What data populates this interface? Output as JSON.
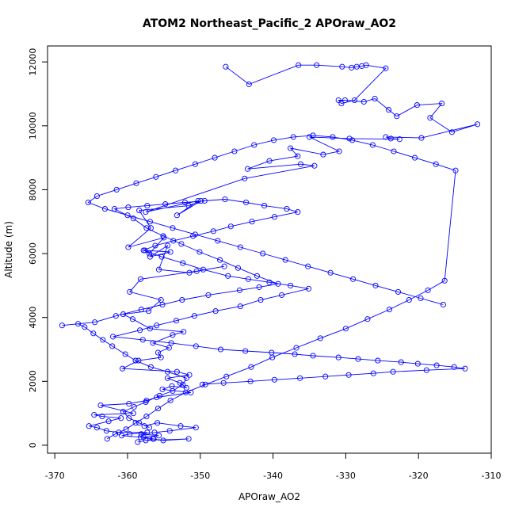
{
  "chart_data": {
    "type": "scatter",
    "title": "ATOM2 Northeast_Pacific_2 APOraw_AO2",
    "xlabel": "APOraw_AO2",
    "ylabel": "Altitude (m)",
    "xlim": [
      -371,
      -310
    ],
    "ylim": [
      -250,
      12500
    ],
    "xticks": [
      -370,
      -360,
      -350,
      -340,
      -330,
      -320,
      -310
    ],
    "yticks": [
      0,
      2000,
      4000,
      6000,
      8000,
      10000,
      12000
    ],
    "xtick_labels": [
      "-370",
      "-360",
      "-350",
      "-340",
      "-330",
      "-320",
      "-310"
    ],
    "ytick_labels": [
      "0",
      "2000",
      "4000",
      "6000",
      "8000",
      "10000",
      "12000"
    ],
    "grid": false,
    "marker": "open-circle",
    "connected": true,
    "series_color": "#0000ff",
    "series": [
      {
        "x": [
          -346.5,
          -343.3,
          -336.5,
          -334.0,
          -330.5,
          -329.2,
          -328.5,
          -327.8,
          -327.2,
          -324.5,
          -328.8,
          -330.6,
          -331.0,
          -330.1,
          -327.5,
          -326.0,
          -324.1,
          -323.0,
          -320.2,
          -316.8,
          -318.4,
          -315.4,
          -311.9,
          -319.6,
          -324.5,
          -323.8,
          -322.6,
          -329.5,
          -335.0,
          -330.9,
          -333.1,
          -337.6,
          -336.6,
          -340.5,
          -343.5,
          -336.2,
          -334.3,
          -343.9,
          -357.5,
          -350.3,
          -353.2,
          -349.9,
          -351.6,
          -358.4,
          -356.8,
          -359.9,
          -355.0,
          -357.0,
          -357.6,
          -354.1,
          -356.9,
          -354.5,
          -355.7,
          -351.5,
          -346.7,
          -350.5,
          -358.2,
          -359.7,
          -355.4,
          -357.1,
          -360.6,
          -359.3,
          -356.9,
          -352.3,
          -353.8,
          -356.5,
          -354.3,
          -355.8,
          -355.4,
          -358.5,
          -360.7,
          -353.2,
          -351.5,
          -354.5,
          -352.8,
          -351.9,
          -353.9,
          -355.2,
          -351.3,
          -356.0,
          -357.4,
          -359.8,
          -363.7,
          -359.2,
          -364.6,
          -363.5,
          -360.9,
          -362.6,
          -365.3,
          -364.2,
          -362.9,
          -361.2,
          -357.3,
          -359.7,
          -360.8,
          -358.2,
          -356.5,
          -355.1,
          -351.6,
          -357.5,
          -358.6,
          -356.4,
          -357.8,
          -355.7,
          -358.1,
          -356.3,
          -354.2,
          -350.6,
          -352.7,
          -355.9,
          -357.7
        ],
        "y": [
          11850,
          11300,
          11900,
          11900,
          11850,
          11820,
          11850,
          11870,
          11900,
          11800,
          10800,
          10700,
          10800,
          10800,
          10750,
          10850,
          10500,
          10300,
          10650,
          10700,
          10250,
          9800,
          10050,
          9620,
          9650,
          9600,
          9580,
          9600,
          9650,
          9200,
          9100,
          9300,
          9050,
          8900,
          8650,
          8800,
          8750,
          8350,
          7300,
          7650,
          7200,
          7650,
          7500,
          7350,
          6800,
          6200,
          6500,
          6000,
          6100,
          6050,
          5900,
          6250,
          5500,
          5400,
          5600,
          5450,
          5200,
          4800,
          4550,
          4200,
          4100,
          3950,
          3650,
          3550,
          3450,
          3200,
          3050,
          2900,
          2750,
          2650,
          2400,
          2300,
          2200,
          2100,
          1950,
          1800,
          1850,
          1750,
          1650,
          1500,
          1400,
          1300,
          1250,
          1000,
          950,
          900,
          850,
          750,
          600,
          550,
          450,
          400,
          400,
          350,
          300,
          250,
          200,
          150,
          200,
          150,
          100,
          200,
          250,
          300,
          350,
          400,
          450,
          550,
          600,
          700,
          600
        ]
      },
      {
        "x": [
          -357.0,
          -358.4,
          -359.8,
          -360.6,
          -359.1,
          -357.5,
          -355.6,
          -353.8,
          -352.4,
          -351.9,
          -354.5,
          -356.8,
          -358.9,
          -360.3,
          -362.1,
          -363.4,
          -364.7,
          -365.9,
          -366.8,
          -369.0,
          -364.5,
          -361.6,
          -358.1,
          -355.2,
          -352.5,
          -348.9,
          -344.6,
          -341.9,
          -339.3,
          -342.2,
          -344.8,
          -347.3,
          -350.1,
          -352.6,
          -355.1,
          -357.4,
          -359.2,
          -361.8,
          -359.9,
          -357.3,
          -354.8,
          -352.1,
          -349.4,
          -346.6,
          -343.7,
          -341.2,
          -338.1,
          -336.6,
          -339.8,
          -342.9,
          -345.8,
          -348.2,
          -351.0,
          -353.7,
          -356.2,
          -357.8,
          -355.3,
          -352.4,
          -349.6,
          -346.2,
          -343.4,
          -340.5,
          -337.6,
          -335.1,
          -338.8,
          -341.7,
          -344.5,
          -347.9,
          -350.8,
          -353.3,
          -356.0,
          -358.3,
          -362.0,
          -357.9,
          -354.0,
          -350.6,
          -347.2,
          -343.8,
          -340.2,
          -337.0,
          -334.5,
          -331.0,
          -328.3,
          -325.6,
          -322.4,
          -320.1,
          -317.5,
          -315.1,
          -313.6,
          -318.9,
          -323.5,
          -326.2,
          -329.6,
          -332.8,
          -336.3,
          -339.8,
          -343.1,
          -346.8,
          -349.7
        ],
        "y": [
          550,
          700,
          850,
          1050,
          1200,
          1350,
          1550,
          1700,
          1900,
          2100,
          2300,
          2450,
          2650,
          2850,
          3100,
          3300,
          3500,
          3700,
          3800,
          3750,
          3850,
          4050,
          4250,
          4400,
          4550,
          4700,
          4850,
          4950,
          5050,
          5300,
          5550,
          5800,
          6050,
          6300,
          6550,
          6800,
          7100,
          7400,
          7450,
          7500,
          7550,
          7600,
          7650,
          7700,
          7600,
          7500,
          7400,
          7300,
          7150,
          7000,
          6850,
          6700,
          6550,
          6400,
          6250,
          6100,
          5900,
          5700,
          5500,
          5300,
          5200,
          5100,
          5000,
          4900,
          4700,
          4550,
          4350,
          4200,
          4050,
          3900,
          3750,
          3600,
          3400,
          3300,
          3200,
          3100,
          3000,
          2950,
          2900,
          2850,
          2800,
          2750,
          2700,
          2650,
          2600,
          2550,
          2500,
          2450,
          2400,
          2350,
          2300,
          2250,
          2200,
          2150,
          2100,
          2050,
          2000,
          1950,
          1900
        ]
      },
      {
        "x": [
          -362.8,
          -361.7,
          -360.2,
          -358.9,
          -357.4,
          -355.8,
          -354.1,
          -352.0,
          -349.3,
          -346.4,
          -343.0,
          -340.1,
          -336.8,
          -333.5,
          -330.0,
          -327.0,
          -324.0,
          -321.3,
          -318.7,
          -316.4,
          -314.9,
          -317.6,
          -320.5,
          -323.4,
          -326.3,
          -329.1,
          -331.8,
          -334.5,
          -337.2,
          -339.9,
          -342.6,
          -345.3,
          -348.0,
          -350.7,
          -353.4,
          -356.1,
          -358.8,
          -361.5,
          -364.2,
          -365.4,
          -363.1,
          -360.0,
          -356.9,
          -353.8,
          -350.7,
          -347.6,
          -344.5,
          -341.4,
          -338.3,
          -335.2,
          -332.1,
          -329.0,
          -325.9,
          -322.8,
          -319.7,
          -316.6
        ],
        "y": [
          200,
          350,
          500,
          700,
          900,
          1150,
          1400,
          1650,
          1900,
          2150,
          2450,
          2750,
          3050,
          3350,
          3650,
          3950,
          4250,
          4550,
          4850,
          5150,
          8600,
          8800,
          9000,
          9200,
          9400,
          9550,
          9650,
          9700,
          9650,
          9550,
          9400,
          9200,
          9000,
          8800,
          8600,
          8400,
          8200,
          8000,
          7800,
          7600,
          7400,
          7200,
          7000,
          6800,
          6600,
          6400,
          6200,
          6000,
          5800,
          5600,
          5400,
          5200,
          5000,
          4800,
          4600,
          4400
        ]
      }
    ]
  }
}
